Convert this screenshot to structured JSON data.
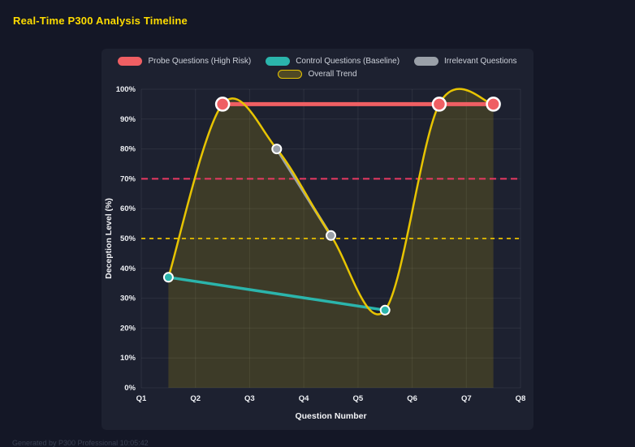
{
  "page": {
    "footer_watermark": "Generated by P300 Professional  10:05:42"
  },
  "chart_data": {
    "type": "line",
    "title": "Real-Time P300 Analysis Timeline",
    "xlabel": "Question Number",
    "ylabel": "Deception Level (%)",
    "xlim": [
      1,
      8
    ],
    "ylim": [
      0,
      100
    ],
    "grid": true,
    "legend_position": "top",
    "legend_rows": [
      3,
      1
    ],
    "x_tick_values": [
      1,
      2,
      3,
      4,
      5,
      6,
      7,
      8
    ],
    "x_tick_labels": [
      "Q1",
      "Q2",
      "Q3",
      "Q4",
      "Q5",
      "Q6",
      "Q7",
      "Q8"
    ],
    "y_tick_values": [
      0,
      10,
      20,
      30,
      40,
      50,
      60,
      70,
      80,
      90,
      100
    ],
    "y_tick_labels": [
      "0%",
      "10%",
      "20%",
      "30%",
      "40%",
      "50%",
      "60%",
      "70%",
      "80%",
      "90%",
      "100%"
    ],
    "style": {
      "grid_color": "rgba(255,255,255,0.07)",
      "background": "#1d2130",
      "page_background": "#141726",
      "title_color": "#ffdc00"
    },
    "series": [
      {
        "id": "probe",
        "name": "Probe Questions (High Risk)",
        "color": "#ef5f63",
        "legend_fill": "#ef5f63",
        "legend_border": "#ef5f63",
        "x": [
          2.5,
          6.5,
          7.5
        ],
        "values": [
          95,
          95,
          95
        ],
        "line_width": 5,
        "marker_radius": 8,
        "marker_stroke": 2.5
      },
      {
        "id": "control",
        "name": "Control Questions (Baseline)",
        "color": "#2bb5ac",
        "legend_fill": "#2bb5ac",
        "legend_border": "#2bb5ac",
        "x": [
          1.5,
          5.5
        ],
        "values": [
          37,
          26
        ],
        "line_width": 3.5,
        "marker_radius": 5.5,
        "marker_stroke": 2
      },
      {
        "id": "irrelevant",
        "name": "Irrelevant Questions",
        "color": "#9aa0a8",
        "legend_fill": "#9aa0a8",
        "legend_border": "#9aa0a8",
        "x": [
          3.5,
          4.5
        ],
        "values": [
          80,
          51
        ],
        "line_width": 3.5,
        "marker_radius": 5.5,
        "marker_stroke": 2
      },
      {
        "id": "trend",
        "name": "Overall Trend",
        "color": "#e7c402",
        "legend_fill": "rgba(231,196,2,0.25)",
        "legend_border": "#e7c402",
        "x": [
          1.5,
          2.5,
          3.5,
          4.5,
          5.5,
          6.5,
          7.5
        ],
        "values": [
          37,
          95,
          80,
          51,
          26,
          95,
          95
        ],
        "line_width": 2.5,
        "smooth": true,
        "fill": true,
        "fill_color": "rgba(231,196,2,0.16)",
        "marker_radius": 0
      }
    ],
    "reference_lines": [
      {
        "name": "high-risk-threshold-line",
        "value": 70,
        "color": "#e83962",
        "dash": "8 5"
      },
      {
        "name": "baseline-threshold-line",
        "value": 50,
        "color": "#d2ae00",
        "dash": "5 5"
      }
    ]
  }
}
